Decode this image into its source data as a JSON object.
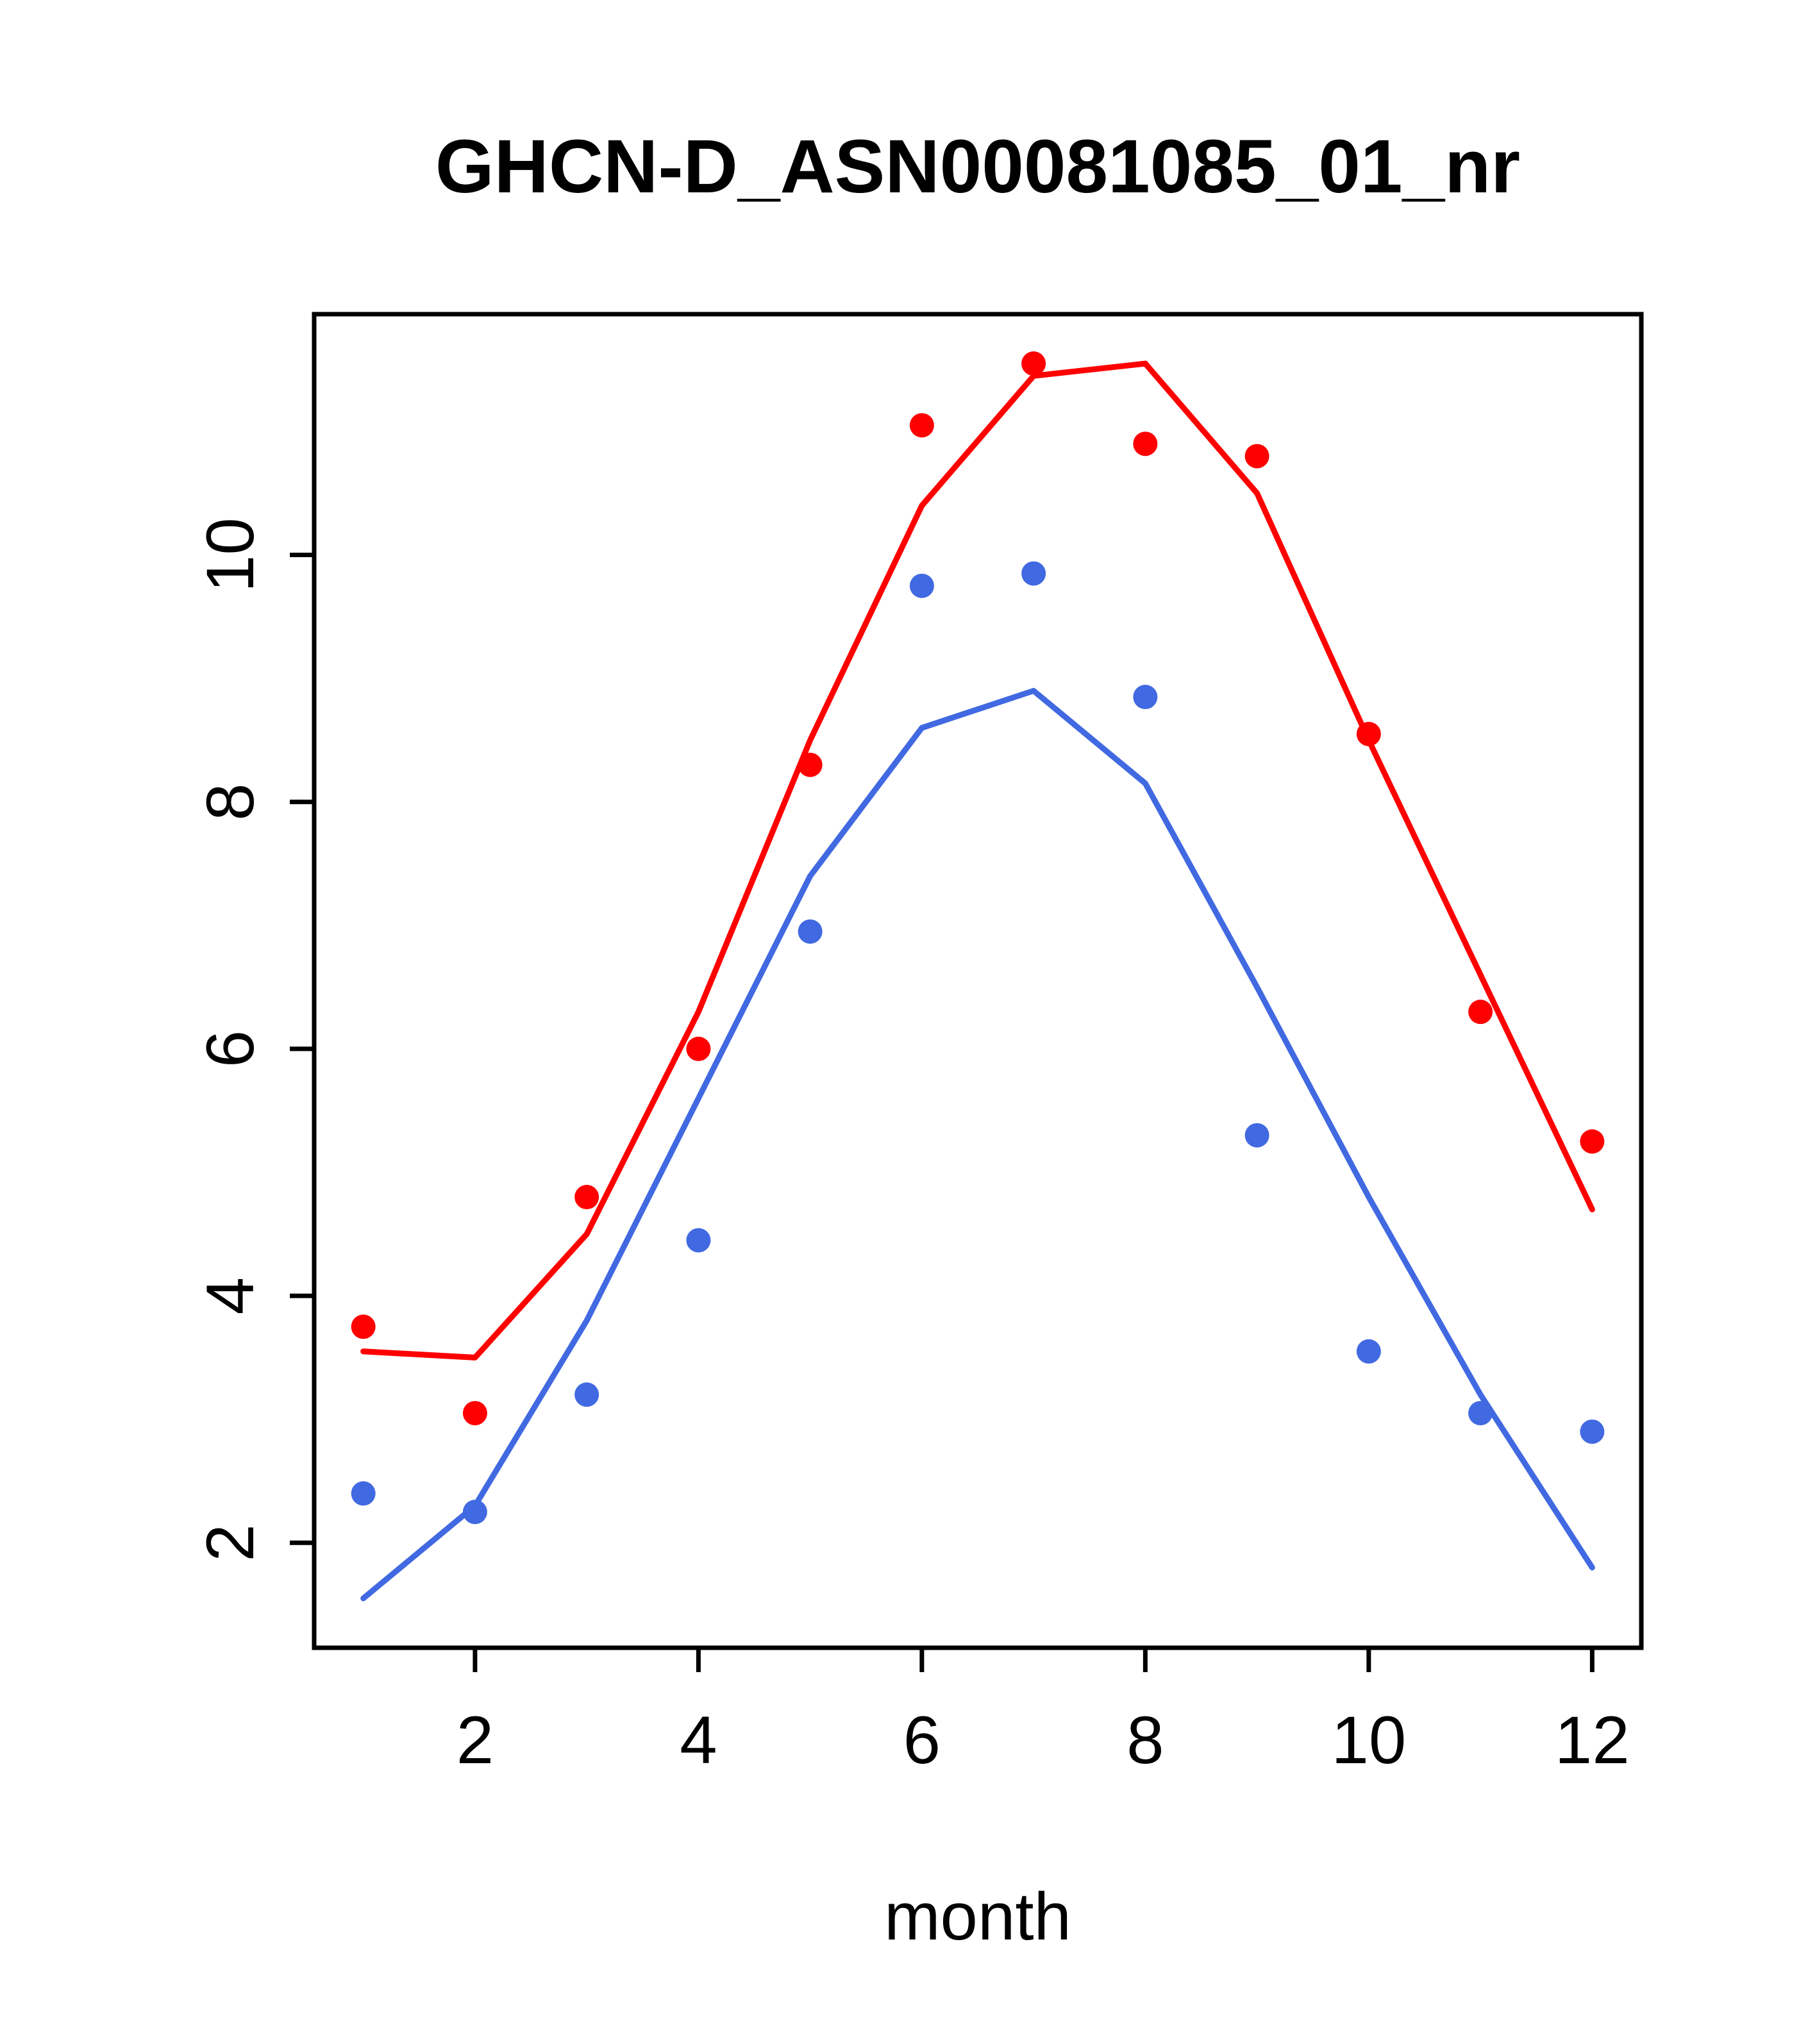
{
  "chart_data": {
    "type": "line",
    "title": "GHCN-D_ASN00081085_01_nr",
    "xlabel": "month",
    "ylabel": "",
    "x": [
      1,
      2,
      3,
      4,
      5,
      6,
      7,
      8,
      9,
      10,
      11,
      12
    ],
    "x_ticks": [
      2,
      4,
      6,
      8,
      10,
      12
    ],
    "y_ticks": [
      2,
      4,
      6,
      8,
      10
    ],
    "xlim": [
      0.56,
      12.44
    ],
    "ylim": [
      1.15,
      11.95
    ],
    "grid": false,
    "legend": "none",
    "colors": {
      "red": "#FF0000",
      "blue": "#4169E1",
      "axis": "#000000",
      "background": "#FFFFFF"
    },
    "series": [
      {
        "name": "red-line",
        "kind": "line",
        "color": "#FF0000",
        "values": [
          3.55,
          3.5,
          4.5,
          6.3,
          8.5,
          10.4,
          11.45,
          11.55,
          10.5,
          8.5,
          6.6,
          4.7
        ]
      },
      {
        "name": "red-points",
        "kind": "points",
        "color": "#FF0000",
        "values": [
          3.75,
          3.05,
          4.8,
          6.0,
          8.3,
          11.05,
          11.55,
          10.9,
          10.8,
          8.55,
          6.3,
          5.25
        ]
      },
      {
        "name": "blue-line",
        "kind": "line",
        "color": "#4169E1",
        "values": [
          1.55,
          2.3,
          3.8,
          5.6,
          7.4,
          8.6,
          8.9,
          8.15,
          6.5,
          4.8,
          3.2,
          1.8
        ]
      },
      {
        "name": "blue-points",
        "kind": "points",
        "color": "#4169E1",
        "values": [
          2.4,
          2.25,
          3.2,
          4.45,
          6.95,
          9.75,
          9.85,
          8.85,
          5.3,
          3.55,
          3.05,
          2.9
        ]
      }
    ]
  }
}
